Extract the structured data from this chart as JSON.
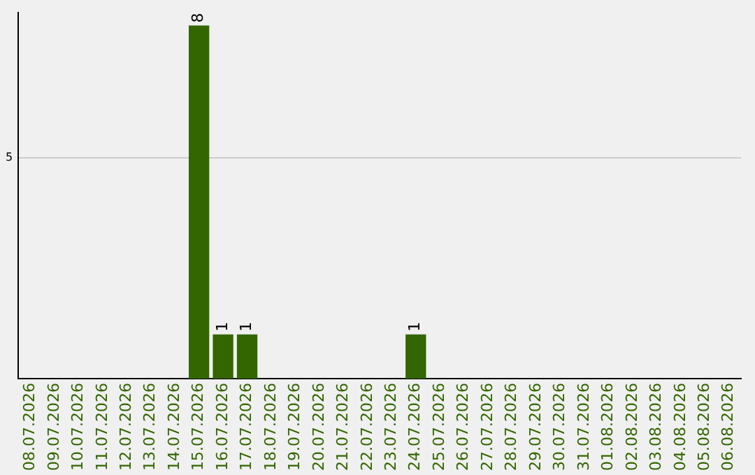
{
  "chart_data": {
    "type": "bar",
    "categories": [
      "08.07.2026",
      "09.07.2026",
      "10.07.2026",
      "11.07.2026",
      "12.07.2026",
      "13.07.2026",
      "14.07.2026",
      "15.07.2026",
      "16.07.2026",
      "17.07.2026",
      "18.07.2026",
      "19.07.2026",
      "20.07.2026",
      "21.07.2026",
      "22.07.2026",
      "23.07.2026",
      "24.07.2026",
      "25.07.2026",
      "26.07.2026",
      "27.07.2026",
      "28.07.2026",
      "29.07.2026",
      "30.07.2026",
      "31.07.2026",
      "01.08.2026",
      "02.08.2026",
      "03.08.2026",
      "04.08.2026",
      "05.08.2026",
      "06.08.2026"
    ],
    "values": [
      0,
      0,
      0,
      0,
      0,
      0,
      0,
      8,
      1,
      1,
      0,
      0,
      0,
      0,
      0,
      0,
      1,
      0,
      0,
      0,
      0,
      0,
      0,
      0,
      0,
      0,
      0,
      0,
      0,
      0
    ],
    "value_labels": [
      null,
      null,
      null,
      null,
      null,
      null,
      null,
      "8",
      "1",
      "1",
      null,
      null,
      null,
      null,
      null,
      null,
      "1",
      null,
      null,
      null,
      null,
      null,
      null,
      null,
      null,
      null,
      null,
      null,
      null,
      null
    ],
    "color": "#336600",
    "ylim": [
      0,
      8.3
    ],
    "yticks": [
      5
    ],
    "grid": "y",
    "legend": false
  }
}
